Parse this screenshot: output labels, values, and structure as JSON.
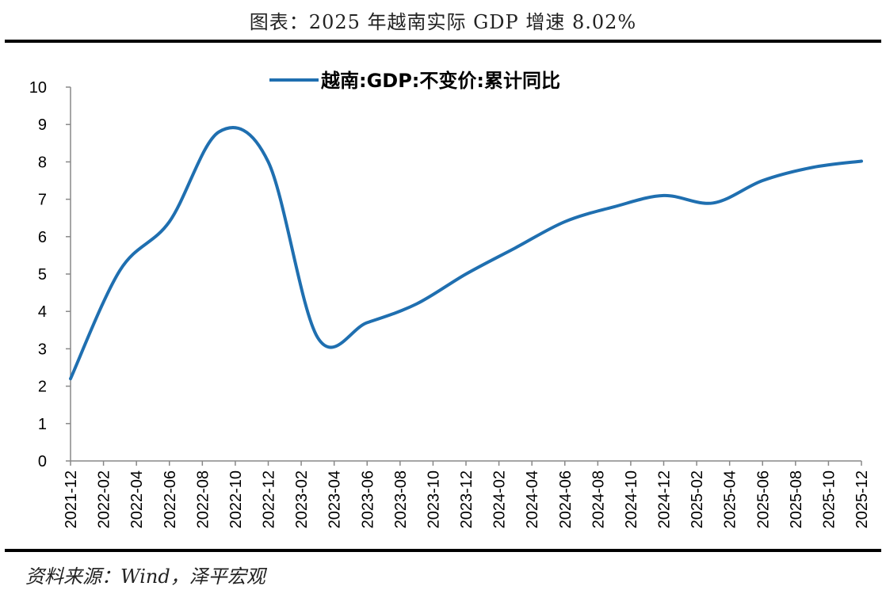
{
  "title": "图表：2025 年越南实际 GDP 增速 8.02%",
  "source": "资料来源：Wind，泽平宏观",
  "colors": {
    "series": "#1f6fb0",
    "axis": "#888888"
  },
  "chart_data": {
    "type": "line",
    "title": "图表：2025 年越南实际 GDP 增速 8.02%",
    "xlabel": "",
    "ylabel": "",
    "ylim": [
      0,
      10
    ],
    "yticks": [
      0,
      1,
      2,
      3,
      4,
      5,
      6,
      7,
      8,
      9,
      10
    ],
    "grid": false,
    "legend_position": "top-center",
    "x_tick_labels": [
      "2021-12",
      "2022-02",
      "2022-04",
      "2022-06",
      "2022-08",
      "2022-10",
      "2022-12",
      "2023-02",
      "2023-04",
      "2023-06",
      "2023-08",
      "2023-10",
      "2023-12",
      "2024-02",
      "2024-04",
      "2024-06",
      "2024-08",
      "2024-10",
      "2024-12",
      "2025-02",
      "2025-04",
      "2025-06",
      "2025-08",
      "2025-10",
      "2025-12"
    ],
    "series": [
      {
        "name": "越南:GDP:不变价:累计同比",
        "color": "#1f6fb0",
        "x": [
          "2021-12",
          "2022-03",
          "2022-06",
          "2022-09",
          "2022-12",
          "2023-03",
          "2023-06",
          "2023-09",
          "2023-12",
          "2024-03",
          "2024-06",
          "2024-09",
          "2024-12",
          "2025-03",
          "2025-06",
          "2025-09",
          "2025-12"
        ],
        "values": [
          2.2,
          5.1,
          6.4,
          8.8,
          8.0,
          3.3,
          3.7,
          4.2,
          5.0,
          5.7,
          6.4,
          6.8,
          7.1,
          6.9,
          7.5,
          7.85,
          8.02
        ]
      }
    ]
  }
}
